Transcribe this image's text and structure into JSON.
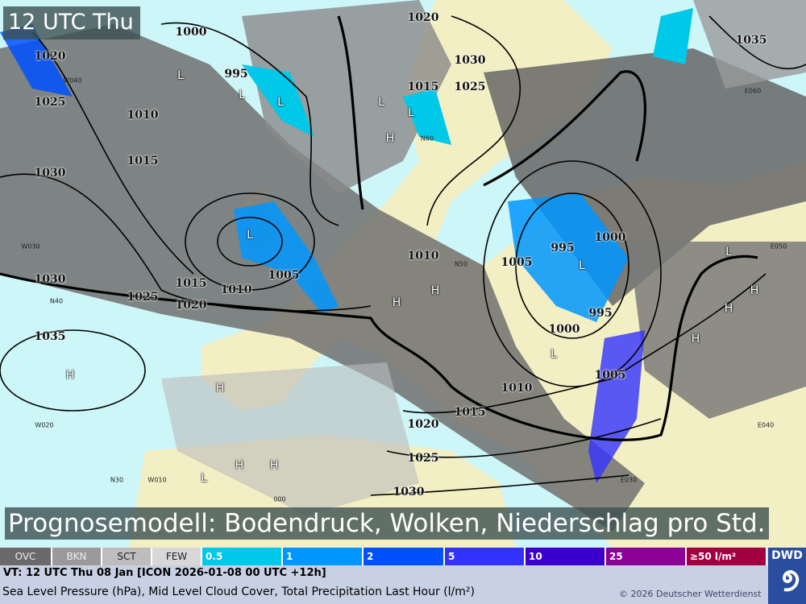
{
  "header": {
    "time_label": "12 UTC Thu",
    "title": "Prognosemodell: Bodendruck, Wolken, Niederschlag pro Std."
  },
  "pressure_labels": [
    "1020",
    "1025",
    "1010",
    "1015",
    "1030",
    "1000",
    "995",
    "1020",
    "1030",
    "1015",
    "1025",
    "1035",
    "1010",
    "1005",
    "1010",
    "1015",
    "1020",
    "1025",
    "1030",
    "1035",
    "995",
    "1000",
    "1005",
    "995",
    "1000",
    "1005",
    "1010",
    "1015",
    "1020",
    "1025",
    "1030"
  ],
  "centers": {
    "high": "H",
    "low": "L"
  },
  "grid_labels": [
    "W040",
    "W030",
    "W020",
    "W010",
    "000",
    "E030",
    "E040",
    "E050",
    "E060",
    "N30",
    "N40",
    "N50",
    "N60"
  ],
  "legend": {
    "cloud": [
      {
        "label": "OVC",
        "color": "#6a6a6a"
      },
      {
        "label": "BKN",
        "color": "#9a9a9a"
      },
      {
        "label": "SCT",
        "color": "#bdbdbd"
      },
      {
        "label": "FEW",
        "color": "#d8d8d8"
      }
    ],
    "precip": [
      {
        "label": "0.5",
        "color": "#00c8e8"
      },
      {
        "label": "1",
        "color": "#0096ff"
      },
      {
        "label": "2",
        "color": "#0050ff"
      },
      {
        "label": "5",
        "color": "#3232ff"
      },
      {
        "label": "10",
        "color": "#3c00cc"
      },
      {
        "label": "25",
        "color": "#8c0096"
      },
      {
        "label": "≥50 l/m²",
        "color": "#a00040"
      }
    ]
  },
  "footer": {
    "valid_time": "VT: 12 UTC Thu  08 Jan [ICON 2026-01-08 00 UTC +12h]",
    "description": "Sea Level Pressure (hPa), Mid Level Cloud Cover, Total Precipitation Last Hour (l/m²)",
    "copyright": "© 2026 Deutscher Wetterdienst",
    "logo": "DWD"
  }
}
